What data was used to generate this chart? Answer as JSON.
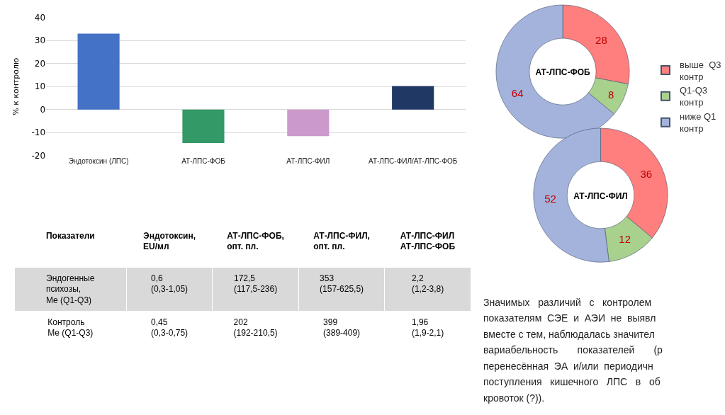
{
  "chart_data": [
    {
      "type": "bar",
      "ylabel": "% к контролю",
      "categories": [
        "Эндотоксин (ЛПС)",
        "АТ-ЛПС-ФОБ",
        "АТ-ЛПС-ФИЛ",
        "АТ-ЛПС-ФИЛ/АТ-ЛПС-ФОБ"
      ],
      "values": [
        33,
        -14.5,
        -11.5,
        10.2
      ],
      "colors": [
        "#4472c4",
        "#339966",
        "#cc99cc",
        "#1f3864"
      ],
      "ylim": [
        -20,
        40
      ],
      "yticks": [
        -20,
        -10,
        0,
        10,
        20,
        30,
        40
      ],
      "grid": "y"
    },
    {
      "type": "donut",
      "title": "АТ-ЛПС-ФОБ",
      "categories": [
        "выше  Q3\nконтр",
        "Q1-Q3\nконтр",
        "ниже Q1\nконтр"
      ],
      "values": [
        28,
        8,
        64
      ],
      "colors": [
        "#ff7f7f",
        "#a9d18e",
        "#a4b3dc"
      ],
      "data_labels": true,
      "legend": "right"
    },
    {
      "type": "donut",
      "title": "АТ-ЛПС-ФИЛ",
      "categories": [
        null,
        null,
        null
      ],
      "values": [
        36,
        12,
        52
      ],
      "colors": [
        "#ff7f7f",
        "#a9d18e",
        "#a4b3dc"
      ],
      "data_labels": true
    },
    {
      "type": "other",
      "categories": [
        "Показатели",
        "Эндотоксин,\nEU/мл",
        "АТ-ЛПС-ФОБ,\nопт. пл.",
        "АТ-ЛПС-ФИЛ,\nопт. пл.",
        "АТ-ЛПС-ФИЛ\nАТ-ЛПС-ФОБ"
      ],
      "y_categories": [
        "Эндогенные\nпсихозы,\nMe (Q1-Q3)",
        "Контроль\nMe (Q1-Q3)"
      ],
      "cell_labels": [
        [
          "0,6\n(0,3-1,05)",
          "172,5\n(117,5-236)",
          "353\n(157-625,5)",
          "2,2\n(1,2-3,8)"
        ],
        [
          "0,45\n(0,3-0,75)",
          "202\n(192-210,5)",
          "399\n(389-409)",
          "1,96\n(1,9-2,1)"
        ]
      ],
      "colors": [
        "#d9d9d9",
        "#ffffff"
      ]
    },
    {
      "type": "other",
      "annotations": [
        "Значимых   различий   с   контролем",
        "показателям  СЭЕ  и  АЭИ  не  выявл",
        "вместе с тем, наблюдалась значител",
        "вариабельность       показателей       (р",
        "перенесённая  ЭА  и/или  периодичн",
        "поступления   кишечного   ЛПС   в   об",
        "кровоток (?))."
      ]
    }
  ]
}
